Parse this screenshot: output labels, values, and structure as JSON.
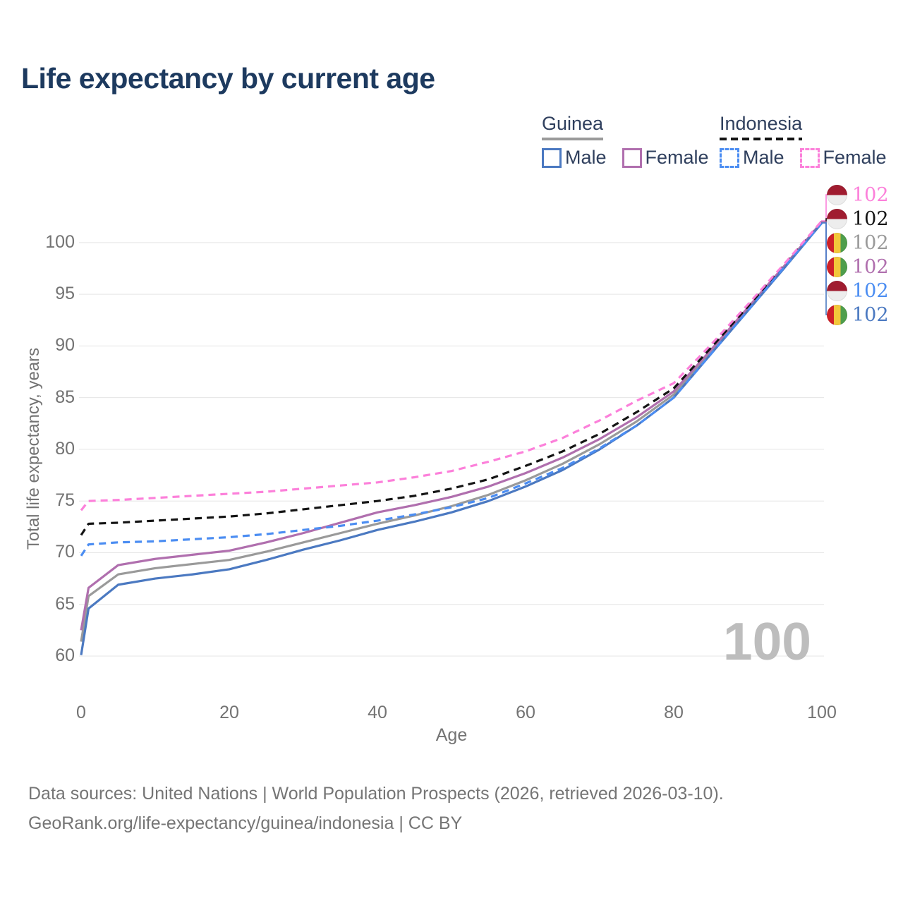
{
  "title": "Life expectancy by current age",
  "watermark": "100",
  "legend": {
    "groups": [
      {
        "name": "Guinea",
        "line_style": "solid",
        "underline_color": "#9a9a9a",
        "items": [
          {
            "label": "Male",
            "color": "#4b79c1",
            "dashed": false
          },
          {
            "label": "Female",
            "color": "#b06fae",
            "dashed": false
          }
        ]
      },
      {
        "name": "Indonesia",
        "line_style": "dashed",
        "underline_color": "#141414",
        "items": [
          {
            "label": "Male",
            "color": "#4b8df2",
            "dashed": true
          },
          {
            "label": "Female",
            "color": "#fc80da",
            "dashed": true
          }
        ]
      }
    ]
  },
  "chart_data": {
    "type": "line",
    "title": "Life expectancy by current age",
    "xlabel": "Age",
    "ylabel": "Total life expectancy, years",
    "x_ticks": [
      0,
      20,
      40,
      60,
      80,
      100
    ],
    "y_ticks": [
      60,
      65,
      70,
      75,
      80,
      85,
      90,
      95,
      100
    ],
    "xlim": [
      0,
      100
    ],
    "ylim": [
      60,
      100
    ],
    "grid": "horizontal",
    "legend_position": "top-right",
    "x": [
      0,
      1,
      5,
      10,
      15,
      20,
      25,
      30,
      35,
      40,
      45,
      50,
      55,
      60,
      65,
      70,
      75,
      80,
      85,
      90,
      95,
      100
    ],
    "series": [
      {
        "name": "Guinea",
        "color": "#9a9a9a",
        "dash": false,
        "end_label_slot": 2,
        "values": [
          61.4,
          65.8,
          67.9,
          68.5,
          68.9,
          69.3,
          70.1,
          71.0,
          71.9,
          72.8,
          73.6,
          74.5,
          75.6,
          77.0,
          78.6,
          80.5,
          82.7,
          85.3,
          89.4,
          93.5,
          97.7,
          102.0
        ]
      },
      {
        "name": "Guinea Female",
        "color": "#b06fae",
        "dash": false,
        "end_label_slot": 3,
        "values": [
          62.5,
          66.6,
          68.8,
          69.4,
          69.8,
          70.2,
          71.0,
          71.9,
          72.9,
          73.9,
          74.6,
          75.4,
          76.4,
          77.7,
          79.2,
          81.0,
          83.1,
          85.6,
          89.6,
          93.7,
          97.8,
          102.0
        ]
      },
      {
        "name": "Guinea Male",
        "color": "#4b79c1",
        "dash": false,
        "end_label_slot": 5,
        "values": [
          60.1,
          64.6,
          66.9,
          67.5,
          67.9,
          68.4,
          69.3,
          70.3,
          71.2,
          72.2,
          73.0,
          73.9,
          75.0,
          76.4,
          78.0,
          80.0,
          82.3,
          85.0,
          89.2,
          93.4,
          97.6,
          101.9
        ]
      },
      {
        "name": "Indonesia",
        "color": "#141414",
        "dash": true,
        "end_label_slot": 1,
        "values": [
          71.7,
          72.8,
          72.9,
          73.1,
          73.3,
          73.5,
          73.8,
          74.2,
          74.6,
          75.0,
          75.5,
          76.2,
          77.1,
          78.4,
          79.8,
          81.5,
          83.6,
          85.9,
          89.8,
          93.8,
          97.9,
          102.0
        ]
      },
      {
        "name": "Indonesia Male",
        "color": "#4b8df2",
        "dash": true,
        "end_label_slot": 4,
        "values": [
          69.7,
          70.8,
          71.0,
          71.1,
          71.3,
          71.5,
          71.8,
          72.2,
          72.6,
          73.1,
          73.7,
          74.4,
          75.3,
          76.7,
          78.2,
          80.1,
          82.3,
          85.0,
          89.2,
          93.4,
          97.7,
          101.9
        ]
      },
      {
        "name": "Indonesia Female",
        "color": "#fc80da",
        "dash": true,
        "end_label_slot": 0,
        "values": [
          74.1,
          75.0,
          75.1,
          75.3,
          75.5,
          75.7,
          75.9,
          76.2,
          76.5,
          76.8,
          77.3,
          77.9,
          78.8,
          79.8,
          81.1,
          82.8,
          84.7,
          86.4,
          90.1,
          94.0,
          98.0,
          102.1
        ]
      }
    ]
  },
  "end_labels": [
    {
      "series": "Indonesia Female",
      "value": "102",
      "color": "#fc80da",
      "flag": "indonesia"
    },
    {
      "series": "Indonesia",
      "value": "102",
      "color": "#141414",
      "flag": "indonesia"
    },
    {
      "series": "Guinea",
      "value": "102",
      "color": "#9a9a9a",
      "flag": "guinea"
    },
    {
      "series": "Guinea Female",
      "value": "102",
      "color": "#b06fae",
      "flag": "guinea"
    },
    {
      "series": "Indonesia Male",
      "value": "102",
      "color": "#4b8df2",
      "flag": "indonesia"
    },
    {
      "series": "Guinea Male",
      "value": "102",
      "color": "#4b79c1",
      "flag": "guinea"
    }
  ],
  "footer": {
    "line1": "Data sources: United Nations | World Population Prospects (2026, retrieved 2026-03-10).",
    "line2": "GeoRank.org/life-expectancy/guinea/indonesia | CC BY"
  }
}
